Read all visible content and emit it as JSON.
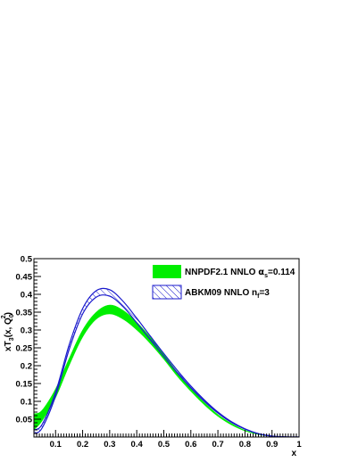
{
  "chart_data": {
    "type": "area",
    "title": "",
    "xlabel": "x",
    "ylabel_parts": {
      "pre": "xT",
      "sub1": "3",
      "mid": "(x, Q",
      "sub2": "0",
      "sup": "2",
      "post": ")"
    },
    "xlim": [
      0.02,
      1.0
    ],
    "ylim": [
      0,
      0.5
    ],
    "xticks": [
      0.1,
      0.2,
      0.3,
      0.4,
      0.5,
      0.6,
      0.7,
      0.8,
      0.9,
      1
    ],
    "xtick_labels": [
      "0.1",
      "0.2",
      "0.3",
      "0.4",
      "0.5",
      "0.6",
      "0.7",
      "0.8",
      "0.9",
      "1"
    ],
    "yticks": [
      0.05,
      0.1,
      0.15,
      0.2,
      0.25,
      0.3,
      0.35,
      0.4,
      0.45,
      0.5
    ],
    "ytick_labels": [
      "0.05",
      "0.1",
      "0.15",
      "0.2",
      "0.25",
      "0.3",
      "0.35",
      "0.4",
      "0.45",
      "0.5"
    ],
    "grid": false,
    "legend_position": "top-right",
    "series": [
      {
        "name": "NNPDF2.1 NNLO",
        "name_math": "α",
        "name_sub": "s",
        "name_tail": "=0.114",
        "style": "filled band",
        "color": "#00ee00",
        "x": [
          0.02,
          0.05,
          0.1,
          0.15,
          0.2,
          0.25,
          0.3,
          0.35,
          0.4,
          0.45,
          0.5,
          0.55,
          0.6,
          0.65,
          0.7,
          0.75,
          0.8,
          0.85,
          0.9,
          0.95,
          1.0
        ],
        "low": [
          0.02,
          0.045,
          0.11,
          0.2,
          0.28,
          0.33,
          0.345,
          0.33,
          0.3,
          0.262,
          0.218,
          0.17,
          0.128,
          0.09,
          0.058,
          0.034,
          0.017,
          0.007,
          0.002,
          0.0003,
          0
        ],
        "high": [
          0.065,
          0.075,
          0.135,
          0.22,
          0.3,
          0.35,
          0.37,
          0.355,
          0.322,
          0.28,
          0.232,
          0.182,
          0.137,
          0.097,
          0.063,
          0.038,
          0.019,
          0.008,
          0.0025,
          0.0004,
          0
        ]
      },
      {
        "name": "ABKM09 NNLO n",
        "name_sub": "f",
        "name_tail": "=3",
        "style": "hatched band",
        "color": "#1a1acc",
        "x": [
          0.02,
          0.05,
          0.1,
          0.15,
          0.2,
          0.25,
          0.3,
          0.35,
          0.4,
          0.45,
          0.5,
          0.55,
          0.6,
          0.65,
          0.7,
          0.75,
          0.8,
          0.85,
          0.9,
          0.95,
          1.0
        ],
        "low": [
          0.01,
          0.025,
          0.115,
          0.245,
          0.345,
          0.392,
          0.395,
          0.365,
          0.32,
          0.273,
          0.226,
          0.18,
          0.138,
          0.1,
          0.067,
          0.041,
          0.022,
          0.009,
          0.0025,
          0.0004,
          0
        ],
        "high": [
          0.02,
          0.035,
          0.125,
          0.258,
          0.36,
          0.41,
          0.413,
          0.38,
          0.333,
          0.283,
          0.234,
          0.187,
          0.143,
          0.104,
          0.07,
          0.043,
          0.023,
          0.0095,
          0.0027,
          0.0005,
          0
        ]
      }
    ]
  }
}
